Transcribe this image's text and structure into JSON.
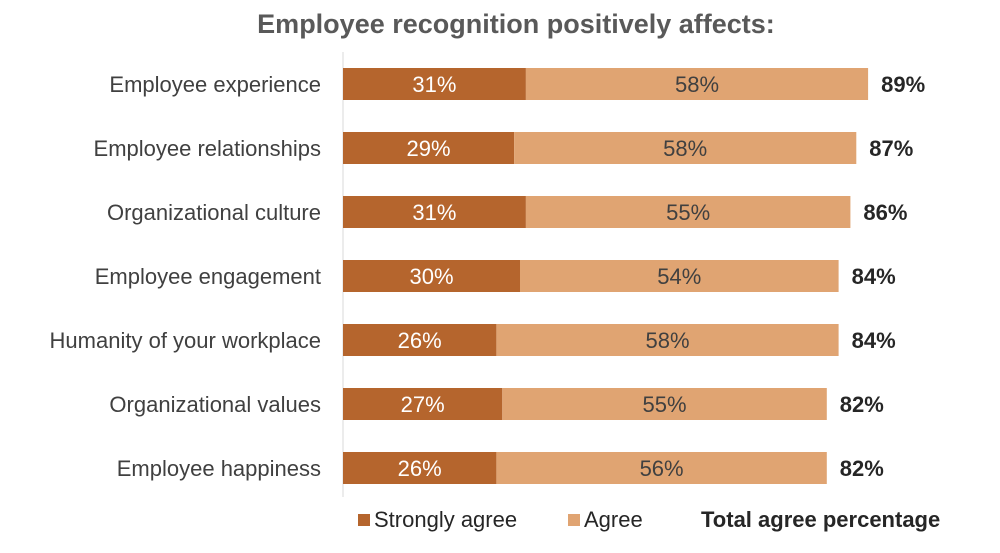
{
  "chart_data": {
    "type": "bar",
    "orientation": "horizontal",
    "stacked": true,
    "title": "Employee recognition positively affects:",
    "categories": [
      "Employee experience",
      "Employee relationships",
      "Organizational culture",
      "Employee engagement",
      "Humanity of your workplace",
      "Organizational values",
      "Employee happiness"
    ],
    "series": [
      {
        "name": "Strongly agree",
        "color": "#B5652D",
        "text_color": "#ffffff",
        "values": [
          31,
          29,
          31,
          30,
          26,
          27,
          26
        ]
      },
      {
        "name": "Agree",
        "color": "#E0A472",
        "text_color": "#404040",
        "values": [
          58,
          58,
          55,
          54,
          58,
          55,
          56
        ]
      }
    ],
    "totals": [
      89,
      87,
      86,
      84,
      84,
      82,
      82
    ],
    "totals_label": "Total agree percentage",
    "value_suffix": "%",
    "xlim": [
      0,
      100
    ],
    "grid": false,
    "legend_position": "bottom"
  }
}
